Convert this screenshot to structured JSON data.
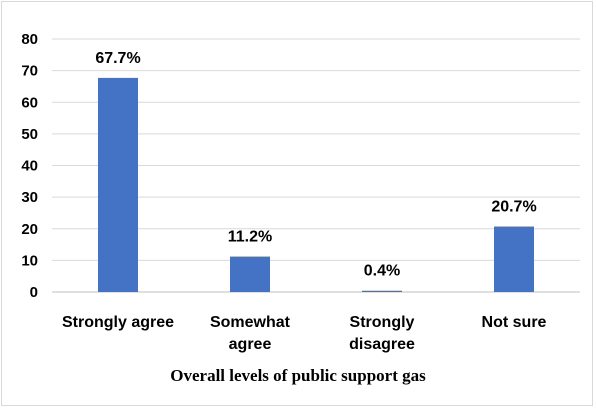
{
  "chart_data": {
    "type": "bar",
    "categories": [
      [
        "Strongly agree"
      ],
      [
        "Somewhat",
        "agree"
      ],
      [
        "Strongly",
        "disagree"
      ],
      [
        "Not sure"
      ]
    ],
    "values": [
      67.7,
      11.2,
      0.4,
      20.7
    ],
    "data_labels": [
      "67.7%",
      "11.2%",
      "0.4%",
      "20.7%"
    ],
    "ylim": [
      0,
      80
    ],
    "yticks": [
      "0",
      "10",
      "20",
      "30",
      "40",
      "50",
      "60",
      "70",
      "80"
    ],
    "xlabel": "Overall levels of public support gas",
    "grid": true,
    "bar_color": "#4472c4",
    "grid_color": "#d9d9d9"
  }
}
